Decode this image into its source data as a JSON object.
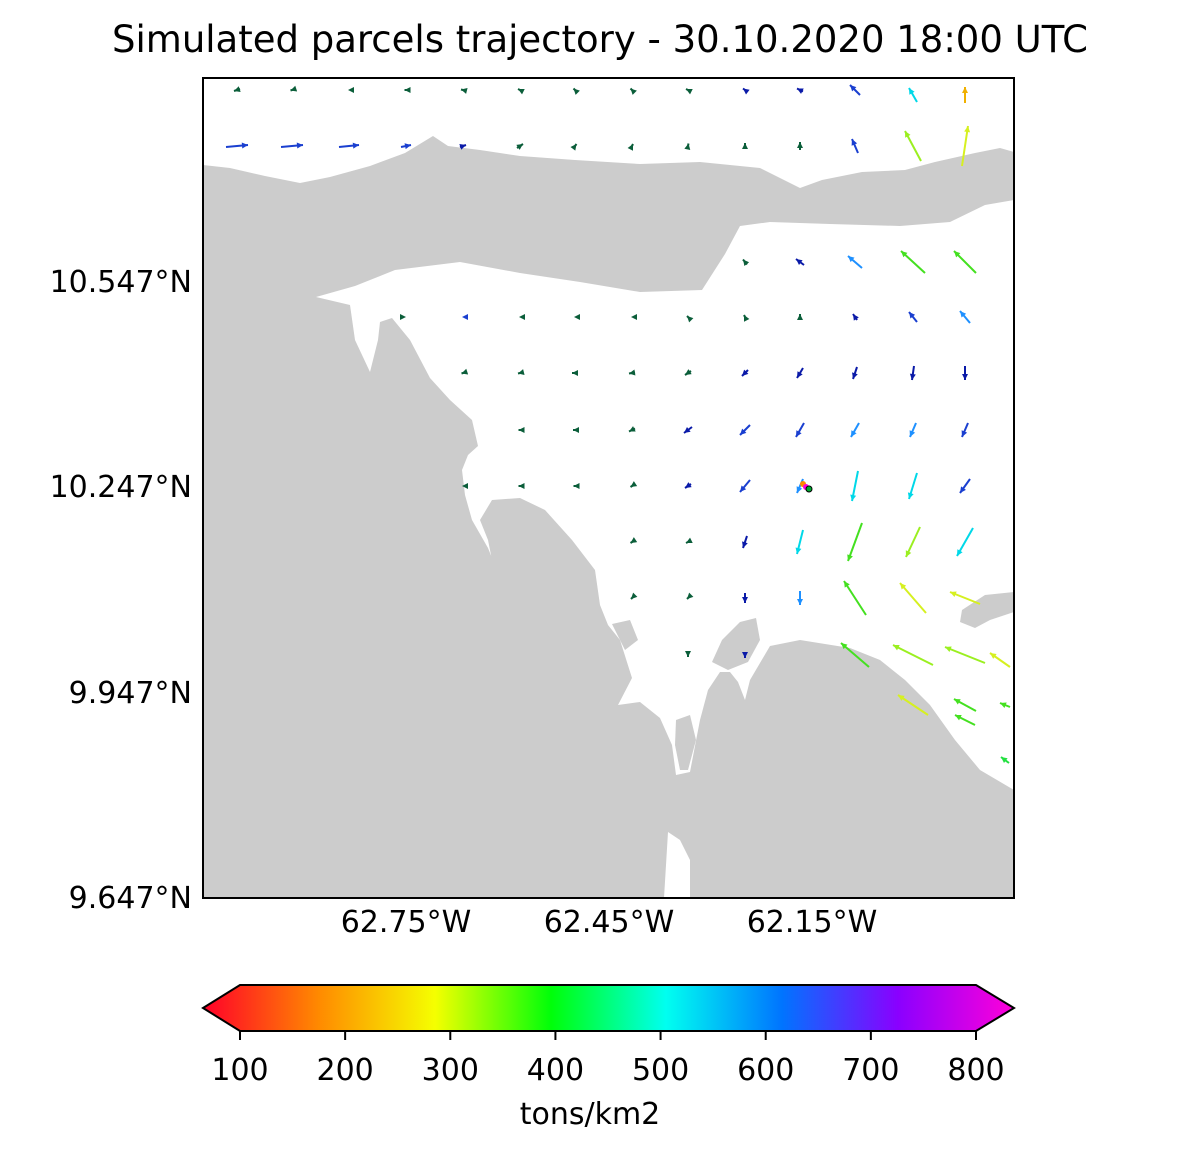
{
  "title": "Simulated parcels trajectory - 30.10.2020 18:00 UTC",
  "map": {
    "lat_ticks": [
      "10.547°N",
      "10.247°N",
      "9.947°N",
      "9.647°N"
    ],
    "lon_ticks": [
      "62.75°W",
      "62.45°W",
      "62.15°W"
    ],
    "land_color": "#cccccc",
    "sea_color": "#ffffff"
  },
  "colorbar": {
    "ticks": [
      "100",
      "200",
      "300",
      "400",
      "500",
      "600",
      "700",
      "800"
    ],
    "label": "tons/km2",
    "colormap": "gist_rainbow",
    "colors": [
      "#ff0029",
      "#ff8a00",
      "#f5ff00",
      "#00ff09",
      "#00fff0",
      "#0074ff",
      "#8a00ff",
      "#ff00d9"
    ]
  }
}
